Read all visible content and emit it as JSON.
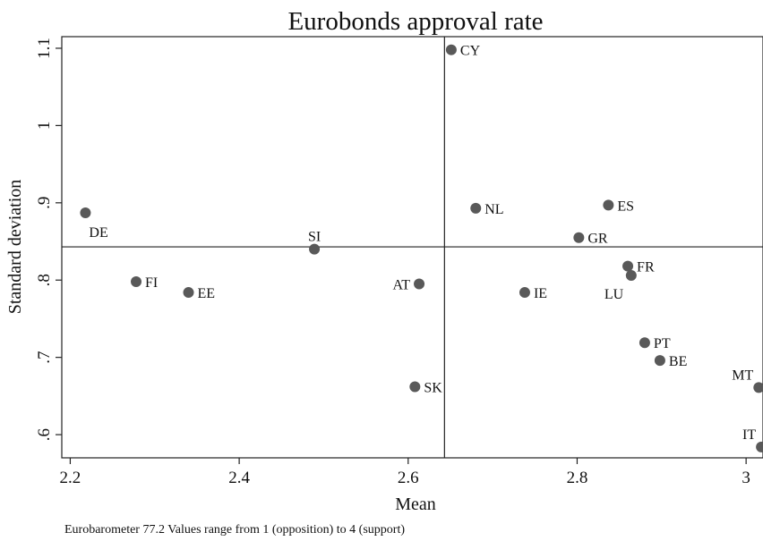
{
  "chart_data": {
    "type": "scatter",
    "title": "Eurobonds approval rate",
    "xlabel": "Mean",
    "ylabel": "Standard deviation",
    "xlim": [
      2.19,
      3.02
    ],
    "ylim": [
      0.57,
      1.115
    ],
    "xticks": [
      2.2,
      2.4,
      2.6,
      2.8,
      3.0
    ],
    "xtick_labels": [
      "2.2",
      "2.4",
      "2.6",
      "2.8",
      "3"
    ],
    "yticks": [
      0.6,
      0.7,
      0.8,
      0.9,
      1.0,
      1.1
    ],
    "ytick_labels": [
      ".6",
      ".7",
      ".8",
      ".9",
      "1",
      "1.1"
    ],
    "reference_lines": {
      "x": 2.643,
      "y": 0.843
    },
    "grid": false,
    "marker_color": "#595959",
    "points": [
      {
        "label": "CY",
        "x": 2.651,
        "y": 1.098,
        "label_pos": "right"
      },
      {
        "label": "DE",
        "x": 2.218,
        "y": 0.887,
        "label_pos": "below"
      },
      {
        "label": "NL",
        "x": 2.68,
        "y": 0.893,
        "label_pos": "right"
      },
      {
        "label": "ES",
        "x": 2.837,
        "y": 0.897,
        "label_pos": "right"
      },
      {
        "label": "GR",
        "x": 2.802,
        "y": 0.855,
        "label_pos": "right"
      },
      {
        "label": "SI",
        "x": 2.489,
        "y": 0.84,
        "label_pos": "above"
      },
      {
        "label": "FR",
        "x": 2.86,
        "y": 0.818,
        "label_pos": "right"
      },
      {
        "label": "LU",
        "x": 2.864,
        "y": 0.806,
        "label_pos": "below-left"
      },
      {
        "label": "FI",
        "x": 2.278,
        "y": 0.798,
        "label_pos": "right"
      },
      {
        "label": "AT",
        "x": 2.613,
        "y": 0.795,
        "label_pos": "left"
      },
      {
        "label": "EE",
        "x": 2.34,
        "y": 0.784,
        "label_pos": "right"
      },
      {
        "label": "IE",
        "x": 2.738,
        "y": 0.784,
        "label_pos": "right"
      },
      {
        "label": "PT",
        "x": 2.88,
        "y": 0.719,
        "label_pos": "right"
      },
      {
        "label": "BE",
        "x": 2.898,
        "y": 0.696,
        "label_pos": "right"
      },
      {
        "label": "SK",
        "x": 2.608,
        "y": 0.662,
        "label_pos": "right"
      },
      {
        "label": "MT",
        "x": 3.015,
        "y": 0.661,
        "label_pos": "above-left"
      },
      {
        "label": "IT",
        "x": 3.018,
        "y": 0.584,
        "label_pos": "above-left"
      }
    ]
  },
  "footnote": "Eurobarometer 77.2 Values range from 1 (opposition) to 4 (support)"
}
